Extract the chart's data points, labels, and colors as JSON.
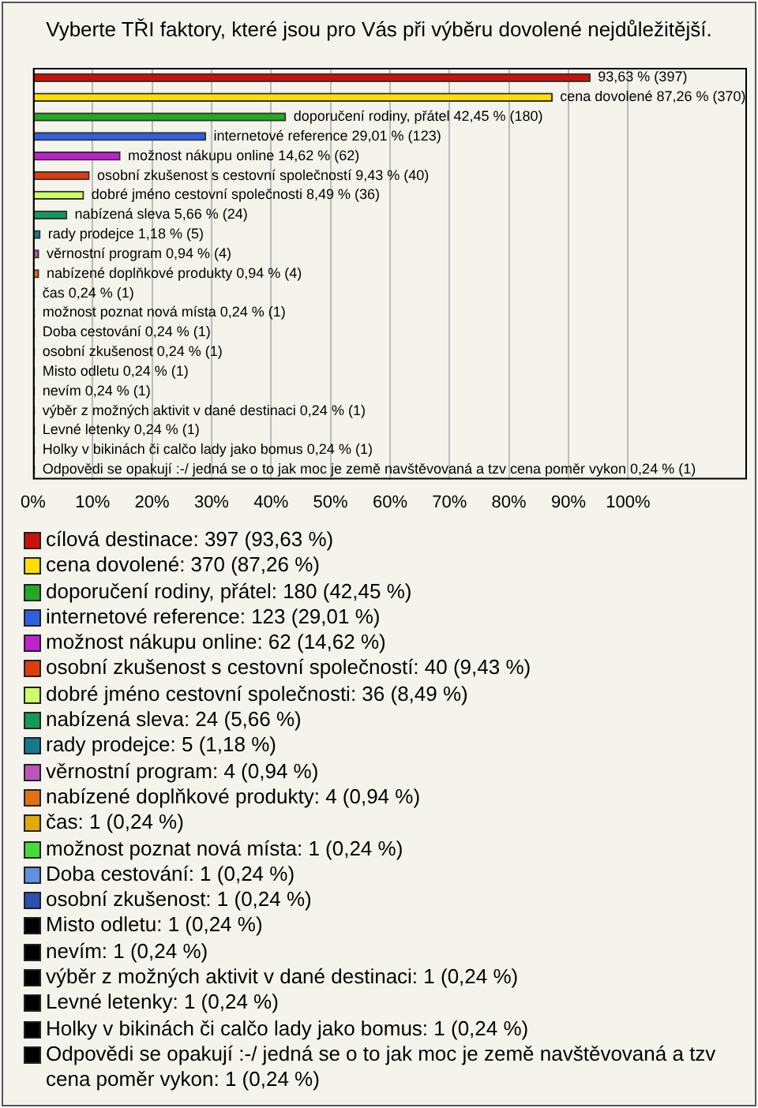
{
  "chart_data": {
    "type": "bar",
    "orientation": "horizontal",
    "title": "Vyberte TŘI faktory, které jsou pro Vás při výběru dovolené nejdůležitější.",
    "categories": [
      null,
      null,
      null,
      null,
      null,
      null,
      null,
      null,
      null,
      null,
      null,
      null,
      null,
      null,
      null,
      null,
      null,
      null,
      null,
      null,
      null
    ],
    "series": [
      {
        "name": "cílová destinace: 397 (93,63 %)",
        "color": "#c8120a",
        "values": [
          93.63,
          null,
          null,
          null,
          null,
          null,
          null,
          null,
          null,
          null,
          null,
          null,
          null,
          null,
          null,
          null,
          null,
          null,
          null,
          null,
          null
        ],
        "value_labels": [
          "93,63 % (397)",
          null,
          null,
          null,
          null,
          null,
          null,
          null,
          null,
          null,
          null,
          null,
          null,
          null,
          null,
          null,
          null,
          null,
          null,
          null,
          null
        ]
      },
      {
        "name": "cena dovolené: 370 (87,26 %)",
        "color": "#ffdd00",
        "values": [
          null,
          87.26,
          null,
          null,
          null,
          null,
          null,
          null,
          null,
          null,
          null,
          null,
          null,
          null,
          null,
          null,
          null,
          null,
          null,
          null,
          null
        ],
        "value_labels": [
          null,
          "cena dovolené 87,26 % (370)",
          null,
          null,
          null,
          null,
          null,
          null,
          null,
          null,
          null,
          null,
          null,
          null,
          null,
          null,
          null,
          null,
          null,
          null,
          null
        ]
      },
      {
        "name": "doporučení rodiny, přátel: 180 (42,45 %)",
        "color": "#22aa22",
        "values": [
          null,
          null,
          42.45,
          null,
          null,
          null,
          null,
          null,
          null,
          null,
          null,
          null,
          null,
          null,
          null,
          null,
          null,
          null,
          null,
          null,
          null
        ],
        "value_labels": [
          null,
          null,
          "doporučení rodiny, přátel 42,45 % (180)",
          null,
          null,
          null,
          null,
          null,
          null,
          null,
          null,
          null,
          null,
          null,
          null,
          null,
          null,
          null,
          null,
          null,
          null
        ]
      },
      {
        "name": "internetové reference: 123 (29,01 %)",
        "color": "#3060e0",
        "values": [
          null,
          null,
          null,
          29.01,
          null,
          null,
          null,
          null,
          null,
          null,
          null,
          null,
          null,
          null,
          null,
          null,
          null,
          null,
          null,
          null,
          null
        ],
        "value_labels": [
          null,
          null,
          null,
          "internetové reference 29,01 % (123)",
          null,
          null,
          null,
          null,
          null,
          null,
          null,
          null,
          null,
          null,
          null,
          null,
          null,
          null,
          null,
          null,
          null
        ]
      },
      {
        "name": "možnost nákupu online: 62 (14,62 %)",
        "color": "#c020d0",
        "values": [
          null,
          null,
          null,
          null,
          14.62,
          null,
          null,
          null,
          null,
          null,
          null,
          null,
          null,
          null,
          null,
          null,
          null,
          null,
          null,
          null,
          null
        ],
        "value_labels": [
          null,
          null,
          null,
          null,
          "možnost nákupu online 14,62 % (62)",
          null,
          null,
          null,
          null,
          null,
          null,
          null,
          null,
          null,
          null,
          null,
          null,
          null,
          null,
          null,
          null
        ]
      },
      {
        "name": "osobní zkušenost s cestovní společností: 40 (9,43 %)",
        "color": "#e03c10",
        "values": [
          null,
          null,
          null,
          null,
          null,
          9.43,
          null,
          null,
          null,
          null,
          null,
          null,
          null,
          null,
          null,
          null,
          null,
          null,
          null,
          null,
          null
        ],
        "value_labels": [
          null,
          null,
          null,
          null,
          null,
          "osobní zkušenost s cestovní společností 9,43 % (40)",
          null,
          null,
          null,
          null,
          null,
          null,
          null,
          null,
          null,
          null,
          null,
          null,
          null,
          null,
          null
        ]
      },
      {
        "name": "dobré jméno cestovní společnosti: 36 (8,49 %)",
        "color": "#ccff66",
        "values": [
          null,
          null,
          null,
          null,
          null,
          null,
          8.49,
          null,
          null,
          null,
          null,
          null,
          null,
          null,
          null,
          null,
          null,
          null,
          null,
          null,
          null
        ],
        "value_labels": [
          null,
          null,
          null,
          null,
          null,
          null,
          "dobré jméno cestovní společnosti 8,49 % (36)",
          null,
          null,
          null,
          null,
          null,
          null,
          null,
          null,
          null,
          null,
          null,
          null,
          null,
          null
        ]
      },
      {
        "name": "nabízená sleva: 24 (5,66 %)",
        "color": "#129a5a",
        "values": [
          null,
          null,
          null,
          null,
          null,
          null,
          null,
          5.66,
          null,
          null,
          null,
          null,
          null,
          null,
          null,
          null,
          null,
          null,
          null,
          null,
          null
        ],
        "value_labels": [
          null,
          null,
          null,
          null,
          null,
          null,
          null,
          "nabízená sleva 5,66 % (24)",
          null,
          null,
          null,
          null,
          null,
          null,
          null,
          null,
          null,
          null,
          null,
          null,
          null
        ]
      },
      {
        "name": "rady prodejce: 5 (1,18 %)",
        "color": "#147a8a",
        "values": [
          null,
          null,
          null,
          null,
          null,
          null,
          null,
          null,
          1.18,
          null,
          null,
          null,
          null,
          null,
          null,
          null,
          null,
          null,
          null,
          null,
          null
        ],
        "value_labels": [
          null,
          null,
          null,
          null,
          null,
          null,
          null,
          null,
          "rady prodejce 1,18 % (5)",
          null,
          null,
          null,
          null,
          null,
          null,
          null,
          null,
          null,
          null,
          null,
          null
        ]
      },
      {
        "name": "věrnostní program: 4 (0,94 %)",
        "color": "#bb55bb",
        "values": [
          null,
          null,
          null,
          null,
          null,
          null,
          null,
          null,
          null,
          0.94,
          null,
          null,
          null,
          null,
          null,
          null,
          null,
          null,
          null,
          null,
          null
        ],
        "value_labels": [
          null,
          null,
          null,
          null,
          null,
          null,
          null,
          null,
          null,
          "věrnostní program 0,94 % (4)",
          null,
          null,
          null,
          null,
          null,
          null,
          null,
          null,
          null,
          null,
          null
        ]
      },
      {
        "name": "nabízené doplňkové produkty: 4 (0,94 %)",
        "color": "#e07010",
        "values": [
          null,
          null,
          null,
          null,
          null,
          null,
          null,
          null,
          null,
          null,
          0.94,
          null,
          null,
          null,
          null,
          null,
          null,
          null,
          null,
          null,
          null
        ],
        "value_labels": [
          null,
          null,
          null,
          null,
          null,
          null,
          null,
          null,
          null,
          null,
          "nabízené doplňkové produkty 0,94 % (4)",
          null,
          null,
          null,
          null,
          null,
          null,
          null,
          null,
          null,
          null
        ]
      },
      {
        "name": "čas: 1 (0,24 %)",
        "color": "#e0aa00",
        "values": [
          null,
          null,
          null,
          null,
          null,
          null,
          null,
          null,
          null,
          null,
          null,
          0.24,
          null,
          null,
          null,
          null,
          null,
          null,
          null,
          null,
          null
        ],
        "value_labels": [
          null,
          null,
          null,
          null,
          null,
          null,
          null,
          null,
          null,
          null,
          null,
          "čas 0,24 % (1)",
          null,
          null,
          null,
          null,
          null,
          null,
          null,
          null,
          null
        ]
      },
      {
        "name": "možnost poznat nová místa: 1 (0,24 %)",
        "color": "#44dd33",
        "values": [
          null,
          null,
          null,
          null,
          null,
          null,
          null,
          null,
          null,
          null,
          null,
          null,
          0.24,
          null,
          null,
          null,
          null,
          null,
          null,
          null,
          null
        ],
        "value_labels": [
          null,
          null,
          null,
          null,
          null,
          null,
          null,
          null,
          null,
          null,
          null,
          null,
          "možnost poznat nová místa 0,24 % (1)",
          null,
          null,
          null,
          null,
          null,
          null,
          null,
          null
        ]
      },
      {
        "name": "Doba cestování: 1 (0,24 %)",
        "color": "#6090e0",
        "values": [
          null,
          null,
          null,
          null,
          null,
          null,
          null,
          null,
          null,
          null,
          null,
          null,
          null,
          0.24,
          null,
          null,
          null,
          null,
          null,
          null,
          null
        ],
        "value_labels": [
          null,
          null,
          null,
          null,
          null,
          null,
          null,
          null,
          null,
          null,
          null,
          null,
          null,
          "Doba cestování 0,24 % (1)",
          null,
          null,
          null,
          null,
          null,
          null,
          null
        ]
      },
      {
        "name": "osobní zkušenost: 1 (0,24 %)",
        "color": "#2a50b0",
        "values": [
          null,
          null,
          null,
          null,
          null,
          null,
          null,
          null,
          null,
          null,
          null,
          null,
          null,
          null,
          0.24,
          null,
          null,
          null,
          null,
          null,
          null
        ],
        "value_labels": [
          null,
          null,
          null,
          null,
          null,
          null,
          null,
          null,
          null,
          null,
          null,
          null,
          null,
          null,
          "osobní zkušenost 0,24 % (1)",
          null,
          null,
          null,
          null,
          null,
          null
        ]
      },
      {
        "name": "Misto odletu: 1 (0,24 %)",
        "color": "#000000",
        "values": [
          null,
          null,
          null,
          null,
          null,
          null,
          null,
          null,
          null,
          null,
          null,
          null,
          null,
          null,
          null,
          0.24,
          null,
          null,
          null,
          null,
          null
        ],
        "value_labels": [
          null,
          null,
          null,
          null,
          null,
          null,
          null,
          null,
          null,
          null,
          null,
          null,
          null,
          null,
          null,
          "Misto odletu 0,24 % (1)",
          null,
          null,
          null,
          null,
          null
        ]
      },
      {
        "name": "nevím: 1 (0,24 %)",
        "color": "#000000",
        "values": [
          null,
          null,
          null,
          null,
          null,
          null,
          null,
          null,
          null,
          null,
          null,
          null,
          null,
          null,
          null,
          null,
          0.24,
          null,
          null,
          null,
          null
        ],
        "value_labels": [
          null,
          null,
          null,
          null,
          null,
          null,
          null,
          null,
          null,
          null,
          null,
          null,
          null,
          null,
          null,
          null,
          "nevím 0,24 % (1)",
          null,
          null,
          null,
          null
        ]
      },
      {
        "name": "výběr z možných aktivit v dané destinaci: 1 (0,24 %)",
        "color": "#000000",
        "values": [
          null,
          null,
          null,
          null,
          null,
          null,
          null,
          null,
          null,
          null,
          null,
          null,
          null,
          null,
          null,
          null,
          null,
          0.24,
          null,
          null,
          null
        ],
        "value_labels": [
          null,
          null,
          null,
          null,
          null,
          null,
          null,
          null,
          null,
          null,
          null,
          null,
          null,
          null,
          null,
          null,
          null,
          "výběr z možných aktivit v dané destinaci 0,24 % (1)",
          null,
          null,
          null
        ]
      },
      {
        "name": "Levné letenky: 1 (0,24 %)",
        "color": "#000000",
        "values": [
          null,
          null,
          null,
          null,
          null,
          null,
          null,
          null,
          null,
          null,
          null,
          null,
          null,
          null,
          null,
          null,
          null,
          null,
          0.24,
          null,
          null
        ],
        "value_labels": [
          null,
          null,
          null,
          null,
          null,
          null,
          null,
          null,
          null,
          null,
          null,
          null,
          null,
          null,
          null,
          null,
          null,
          null,
          "Levné letenky 0,24 % (1)",
          null,
          null
        ]
      },
      {
        "name": "Holky v bikinách či calčo lady jako bomus: 1 (0,24 %)",
        "color": "#000000",
        "values": [
          null,
          null,
          null,
          null,
          null,
          null,
          null,
          null,
          null,
          null,
          null,
          null,
          null,
          null,
          null,
          null,
          null,
          null,
          null,
          0.24,
          null
        ],
        "value_labels": [
          null,
          null,
          null,
          null,
          null,
          null,
          null,
          null,
          null,
          null,
          null,
          null,
          null,
          null,
          null,
          null,
          null,
          null,
          null,
          "Holky v bikinách či calčo lady jako bomus 0,24 % (1)",
          null
        ]
      },
      {
        "name": "Odpovědi se opakují :-/ jedná se o to jak moc je země navštěvovaná a tzv cena poměr vykon: 1 (0,24 %)",
        "color": "#000000",
        "values": [
          null,
          null,
          null,
          null,
          null,
          null,
          null,
          null,
          null,
          null,
          null,
          null,
          null,
          null,
          null,
          null,
          null,
          null,
          null,
          null,
          0.24
        ],
        "value_labels": [
          null,
          null,
          null,
          null,
          null,
          null,
          null,
          null,
          null,
          null,
          null,
          null,
          null,
          null,
          null,
          null,
          null,
          null,
          null,
          null,
          "Odpovědi se opakují :-/ jedná se o to jak moc je země navštěvovaná a tzv cena poměr vykon 0,24 % (1)"
        ]
      }
    ],
    "xlim": [
      0,
      120
    ],
    "xticks": [
      {
        "value": 0,
        "label": "0%"
      },
      {
        "value": 10,
        "label": "10%"
      },
      {
        "value": 20,
        "label": "20%"
      },
      {
        "value": 30,
        "label": "30%"
      },
      {
        "value": 40,
        "label": "40%"
      },
      {
        "value": 50,
        "label": "50%"
      },
      {
        "value": 60,
        "label": "60%"
      },
      {
        "value": 70,
        "label": "70%"
      },
      {
        "value": 80,
        "label": "80%"
      },
      {
        "value": 90,
        "label": "90%"
      },
      {
        "value": 100,
        "label": "100%"
      }
    ],
    "grid": "x",
    "legend": "bottom"
  }
}
